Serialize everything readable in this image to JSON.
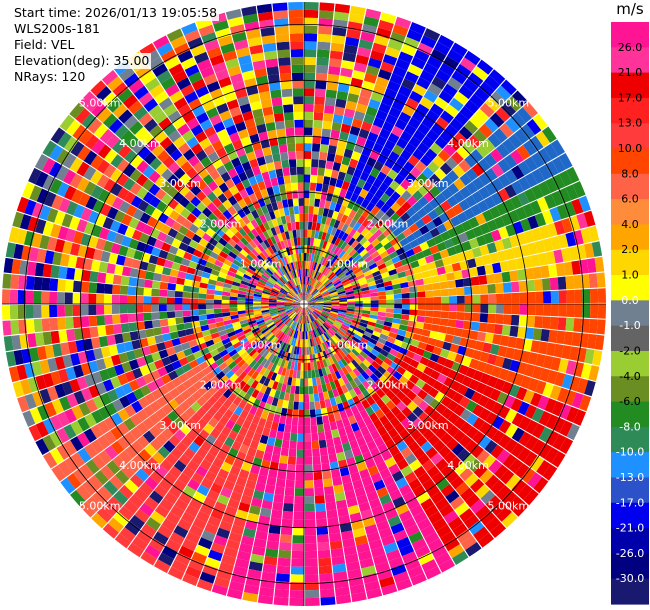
{
  "info": {
    "start_time": "Start time: 2026/01/13 19:05:58",
    "instrument": "WLS200s-181",
    "field": "Field: VEL",
    "elevation": "Elevation(deg): 35.00",
    "nrays": "NRays: 120"
  },
  "chart_data": {
    "type": "ppi-polar",
    "field": "VEL",
    "units": "m/s",
    "n_rays": 120,
    "range_rings_km": [
      1.0,
      2.0,
      3.0,
      4.0,
      5.0
    ],
    "range_ring_labels": [
      "1.00km",
      "2.00km",
      "3.00km",
      "4.00km",
      "5.00km"
    ],
    "max_range_km": 5.4,
    "colorbar_ticks": [
      "26.0",
      "21.0",
      "17.0",
      "13.0",
      "10.0",
      "8.0",
      "6.0",
      "4.0",
      "2.0",
      "1.0",
      "0.0",
      "-1.0",
      "-2.0",
      "-4.0",
      "-6.0",
      "-8.0",
      "-10.0",
      "-13.0",
      "-17.0",
      "-21.0",
      "-26.0",
      "-30.0"
    ],
    "colorbar_colors": [
      "#ff1493",
      "#ff3399",
      "#ee0000",
      "#ff2020",
      "#ff3b3b",
      "#ff4500",
      "#ff6347",
      "#ff8c3a",
      "#ffa500",
      "#ffd700",
      "#ffff00",
      "#708090",
      "#646464",
      "#9acd32",
      "#6b8e23",
      "#228b22",
      "#2e8b57",
      "#1e90ff",
      "#2b52c8",
      "#0000ee",
      "#0000aa",
      "#000080",
      "#191970"
    ],
    "sectors": [
      {
        "from_deg": 48,
        "to_deg": 62,
        "color": "#1f68c8"
      },
      {
        "from_deg": 62,
        "to_deg": 72,
        "color": "#228b22"
      },
      {
        "from_deg": 72,
        "to_deg": 80,
        "color": "#ffd700"
      },
      {
        "from_deg": 80,
        "to_deg": 88,
        "color": "#ffa500"
      },
      {
        "from_deg": 88,
        "to_deg": 112,
        "color": "#ff4500"
      },
      {
        "from_deg": 112,
        "to_deg": 150,
        "color": "#ee0000"
      },
      {
        "from_deg": 150,
        "to_deg": 195,
        "color": "#ff1493"
      },
      {
        "from_deg": 195,
        "to_deg": 225,
        "color": "#ff3b3b"
      },
      {
        "from_deg": 225,
        "to_deg": 240,
        "color": "#ff6347"
      },
      {
        "from_deg": 20,
        "to_deg": 42,
        "color": "#0000ee"
      }
    ]
  }
}
